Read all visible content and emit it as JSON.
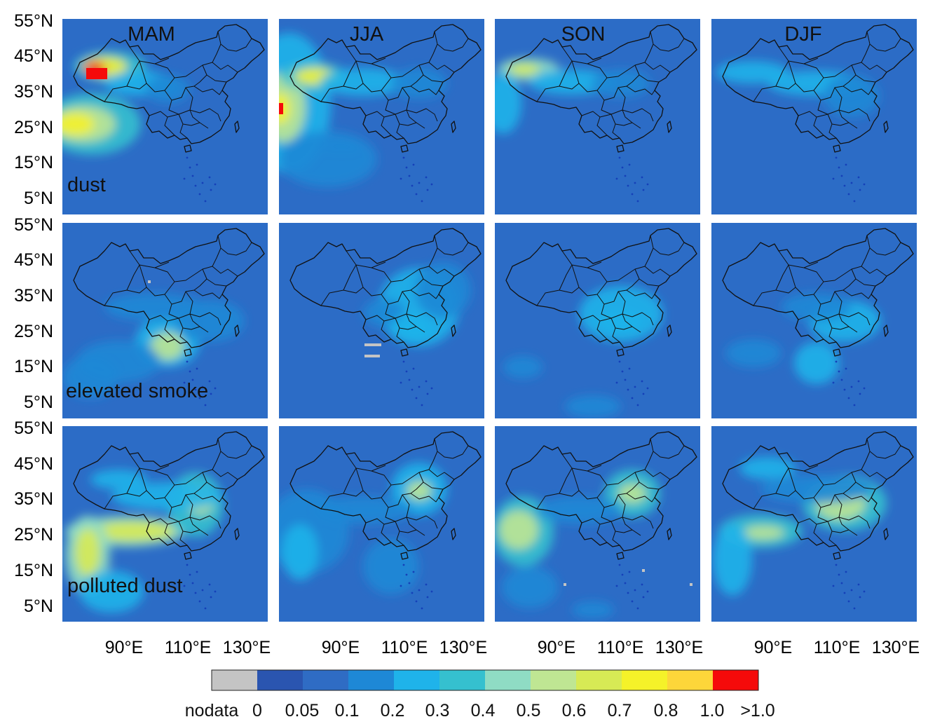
{
  "seasons": [
    "MAM",
    "JJA",
    "SON",
    "DJF"
  ],
  "rows": [
    "dust",
    "elevated smoke",
    "polluted dust"
  ],
  "lat_ticks": [
    "55°N",
    "45°N",
    "35°N",
    "25°N",
    "15°N",
    "5°N"
  ],
  "lon_ticks": [
    "90°E",
    "110°E",
    "130°E"
  ],
  "colorbar": {
    "labels": [
      "nodata",
      "0",
      "0.05",
      "0.1",
      "0.2",
      "0.3",
      "0.4",
      "0.5",
      "0.6",
      "0.7",
      "0.8",
      "1.0",
      ">1.0"
    ],
    "colors": [
      "#c4c4c4",
      "#2a55b0",
      "#2f6cc4",
      "#1e88d6",
      "#1fb3ea",
      "#35c0cf",
      "#8fdcc4",
      "#bfe693",
      "#d7ea55",
      "#f5f229",
      "#fdd63a",
      "#f50a0a"
    ]
  },
  "colors": {
    "ocean": "#2c6cc6",
    "boundary": "#111111",
    "islands": "#1540b8"
  }
}
